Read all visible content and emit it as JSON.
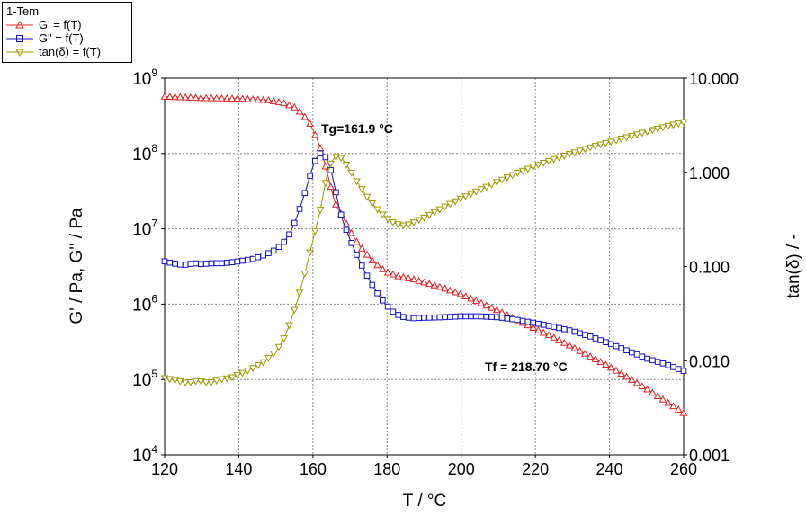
{
  "legend": {
    "title": "1-Tem",
    "entries": [
      "G' = f(T)",
      "G\" = f(T)",
      "tan(δ) = f(T)"
    ]
  },
  "chart_data": {
    "type": "line",
    "xlabel": "T / °C",
    "ylabel": "G' / Pa, G'' / Pa",
    "y2label": "tan(δ) / -",
    "xlim": [
      120,
      260
    ],
    "ylim": [
      10000,
      1000000000
    ],
    "y2lim": [
      0.001,
      10
    ],
    "yscale": "log",
    "y2scale": "log",
    "grid": true,
    "legend_position": "top-left outside",
    "x_ticks": [
      "120",
      "140",
      "160",
      "180",
      "200",
      "220",
      "240",
      "260"
    ],
    "y_ticks": [
      {
        "base": "10",
        "exp": "4"
      },
      {
        "base": "10",
        "exp": "5"
      },
      {
        "base": "10",
        "exp": "6"
      },
      {
        "base": "10",
        "exp": "7"
      },
      {
        "base": "10",
        "exp": "8"
      },
      {
        "base": "10",
        "exp": "9"
      }
    ],
    "y2_ticks": [
      "0.001",
      "0.010",
      "0.100",
      "1.000",
      "10.000"
    ],
    "annotations": [
      {
        "text": "Tg=161.9  °C",
        "x": 161.9,
        "y": 130000000
      },
      {
        "text": "Tf = 218.70 °C",
        "x": 208,
        "y": 110000
      }
    ],
    "series": [
      {
        "name": "G' = f(T)",
        "axis": "left",
        "color": "#e02020",
        "marker": "triangle-up",
        "points": [
          [
            120,
            570000000
          ],
          [
            130,
            545000000
          ],
          [
            140,
            535000000
          ],
          [
            148,
            510000000
          ],
          [
            152,
            470000000
          ],
          [
            155,
            410000000
          ],
          [
            157,
            340000000
          ],
          [
            159,
            260000000
          ],
          [
            160,
            205000000
          ],
          [
            161,
            160000000
          ],
          [
            162,
            118000000
          ],
          [
            163,
            80000000
          ],
          [
            164,
            52000000
          ],
          [
            165,
            33000000
          ],
          [
            166,
            22000000
          ],
          [
            168,
            14500000
          ],
          [
            170,
            9500000
          ],
          [
            172,
            6500000
          ],
          [
            174,
            4900000
          ],
          [
            176,
            3800000
          ],
          [
            178,
            3100000
          ],
          [
            180,
            2650000
          ],
          [
            183,
            2350000
          ],
          [
            187,
            2150000
          ],
          [
            190,
            1950000
          ],
          [
            195,
            1650000
          ],
          [
            200,
            1350000
          ],
          [
            205,
            1050000
          ],
          [
            210,
            820000
          ],
          [
            215,
            620000
          ],
          [
            220,
            470000
          ],
          [
            225,
            360000
          ],
          [
            230,
            270000
          ],
          [
            235,
            200000
          ],
          [
            240,
            148000
          ],
          [
            245,
            106000
          ],
          [
            250,
            75000
          ],
          [
            255,
            52000
          ],
          [
            260,
            36000
          ]
        ]
      },
      {
        "name": "G\" = f(T)",
        "axis": "left",
        "color": "#1010c0",
        "marker": "square",
        "points": [
          [
            120,
            3700000
          ],
          [
            122,
            3500000
          ],
          [
            125,
            3300000
          ],
          [
            128,
            3500000
          ],
          [
            130,
            3400000
          ],
          [
            133,
            3500000
          ],
          [
            136,
            3500000
          ],
          [
            140,
            3700000
          ],
          [
            144,
            4000000
          ],
          [
            147,
            4500000
          ],
          [
            150,
            5300000
          ],
          [
            152,
            6500000
          ],
          [
            154,
            9000000
          ],
          [
            156,
            16000000
          ],
          [
            158,
            32000000
          ],
          [
            160,
            68000000
          ],
          [
            161,
            88000000
          ],
          [
            162,
            100000000
          ],
          [
            163,
            96000000
          ],
          [
            164,
            80000000
          ],
          [
            165,
            56000000
          ],
          [
            166,
            34000000
          ],
          [
            167,
            20000000
          ],
          [
            168,
            13000000
          ],
          [
            170,
            7200000
          ],
          [
            172,
            4300000
          ],
          [
            174,
            2700000
          ],
          [
            176,
            1800000
          ],
          [
            178,
            1250000
          ],
          [
            180,
            950000
          ],
          [
            182,
            760000
          ],
          [
            184,
            680000
          ],
          [
            187,
            650000
          ],
          [
            190,
            660000
          ],
          [
            195,
            670000
          ],
          [
            200,
            690000
          ],
          [
            205,
            690000
          ],
          [
            210,
            670000
          ],
          [
            215,
            620000
          ],
          [
            220,
            560000
          ],
          [
            225,
            500000
          ],
          [
            230,
            440000
          ],
          [
            235,
            370000
          ],
          [
            240,
            300000
          ],
          [
            245,
            240000
          ],
          [
            250,
            190000
          ],
          [
            255,
            160000
          ],
          [
            260,
            130000
          ]
        ]
      },
      {
        "name": "tan(δ) = f(T)",
        "axis": "right",
        "color": "#9a9a00",
        "marker": "triangle-down",
        "points": [
          [
            120,
            0.0065
          ],
          [
            123,
            0.0062
          ],
          [
            126,
            0.0058
          ],
          [
            129,
            0.0061
          ],
          [
            132,
            0.0058
          ],
          [
            135,
            0.0063
          ],
          [
            138,
            0.0066
          ],
          [
            141,
            0.0074
          ],
          [
            144,
            0.0084
          ],
          [
            147,
            0.0098
          ],
          [
            150,
            0.0125
          ],
          [
            152,
            0.0165
          ],
          [
            154,
            0.026
          ],
          [
            156,
            0.046
          ],
          [
            158,
            0.09
          ],
          [
            160,
            0.19
          ],
          [
            162,
            0.4
          ],
          [
            163,
            0.65
          ],
          [
            164,
            1.0
          ],
          [
            165,
            1.3
          ],
          [
            166,
            1.45
          ],
          [
            167,
            1.48
          ],
          [
            168,
            1.38
          ],
          [
            170,
            1.05
          ],
          [
            172,
            0.78
          ],
          [
            175,
            0.52
          ],
          [
            178,
            0.38
          ],
          [
            181,
            0.3
          ],
          [
            184,
            0.27
          ],
          [
            186,
            0.28
          ],
          [
            190,
            0.33
          ],
          [
            195,
            0.42
          ],
          [
            200,
            0.53
          ],
          [
            205,
            0.65
          ],
          [
            210,
            0.8
          ],
          [
            215,
            0.98
          ],
          [
            220,
            1.17
          ],
          [
            225,
            1.38
          ],
          [
            230,
            1.6
          ],
          [
            235,
            1.85
          ],
          [
            240,
            2.1
          ],
          [
            245,
            2.38
          ],
          [
            250,
            2.7
          ],
          [
            255,
            3.05
          ],
          [
            260,
            3.4
          ]
        ]
      }
    ]
  }
}
